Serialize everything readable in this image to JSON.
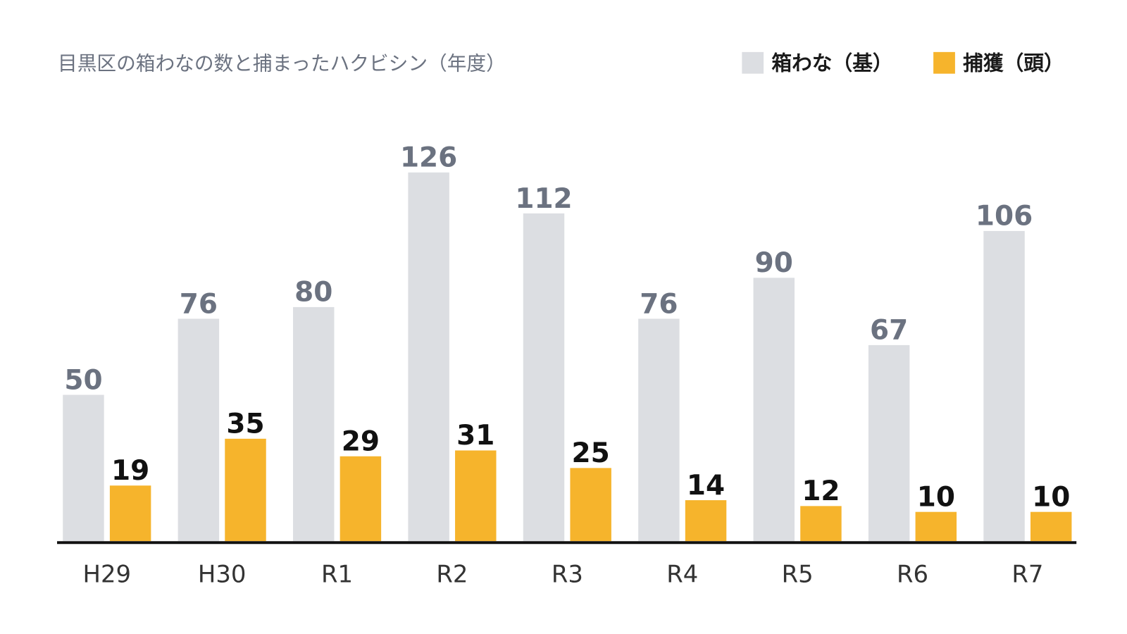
{
  "chart_data": {
    "type": "bar",
    "title": "目黒区の箱わなの数と捕まったハクビシン（年度）",
    "categories": [
      "H29",
      "H30",
      "R1",
      "R2",
      "R3",
      "R4",
      "R5",
      "R6",
      "R7"
    ],
    "series": [
      {
        "name": "箱わな（基）",
        "color": "#dcdee2",
        "label_color": "#6b7280",
        "values": [
          50,
          76,
          80,
          126,
          112,
          76,
          90,
          67,
          106
        ]
      },
      {
        "name": "捕獲（頭）",
        "color": "#f6b42c",
        "label_color": "#111111",
        "values": [
          19,
          35,
          29,
          31,
          25,
          14,
          12,
          10,
          10
        ]
      }
    ],
    "legend": "top-right"
  }
}
